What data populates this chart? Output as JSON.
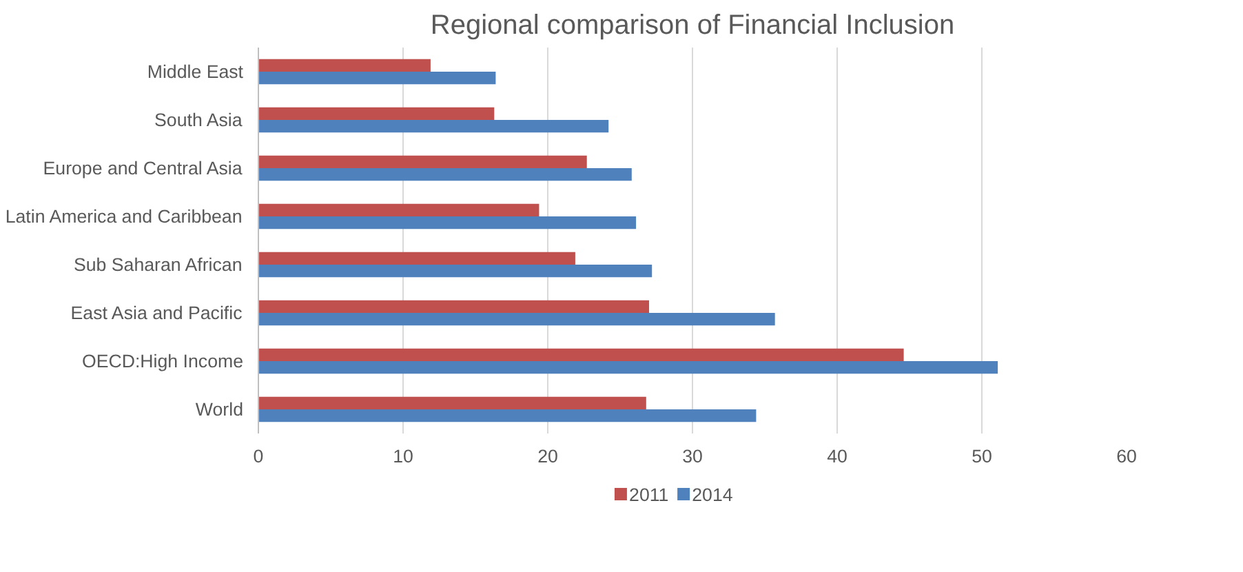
{
  "chart_data": {
    "type": "bar",
    "orientation": "horizontal",
    "title": "Regional comparison of Financial Inclusion",
    "categories": [
      "Middle East",
      "South Asia",
      "Europe and Central Asia",
      "Latin America and Caribbean",
      "Sub Saharan African",
      "East Asia and Pacific",
      "OECD:High Income",
      "World"
    ],
    "series": [
      {
        "name": "2011",
        "color": "#c0504d",
        "values": [
          11.9,
          16.3,
          22.7,
          19.4,
          21.9,
          27.0,
          44.6,
          26.8
        ]
      },
      {
        "name": "2014",
        "color": "#4f81bd",
        "values": [
          16.4,
          24.2,
          25.8,
          26.1,
          27.2,
          35.7,
          51.1,
          34.4
        ]
      }
    ],
    "xlim": [
      0,
      60
    ],
    "xticks": [
      0,
      10,
      20,
      30,
      40,
      50,
      60
    ],
    "grid": "x",
    "legend": "bottom"
  }
}
